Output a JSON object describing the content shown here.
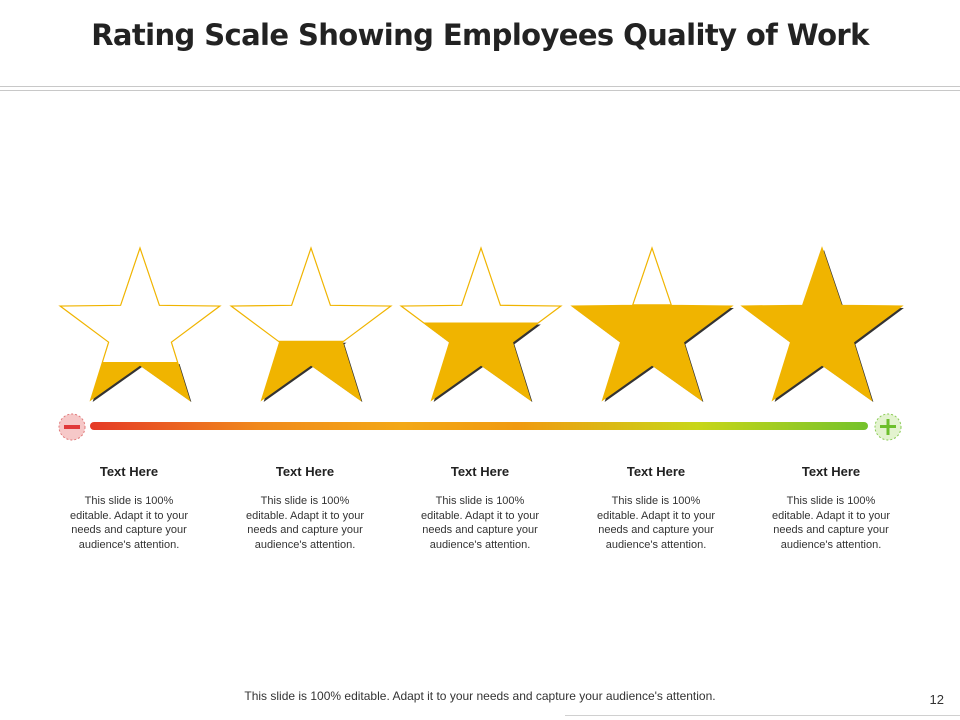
{
  "title": "Rating Scale Showing Employees Quality of Work",
  "rating_items": [
    {
      "heading": "Text Here",
      "body": "This slide is 100% editable. Adapt it to your needs and capture your audience's attention.",
      "fill": 0.25
    },
    {
      "heading": "Text Here",
      "body": "This slide is 100% editable. Adapt it to your needs and capture your audience's attention.",
      "fill": 0.39
    },
    {
      "heading": "Text Here",
      "body": "This slide is 100% editable. Adapt it to your needs and capture your audience's attention.",
      "fill": 0.51
    },
    {
      "heading": "Text Here",
      "body": "This slide is 100% editable. Adapt it to your needs and capture your audience's attention.",
      "fill": 0.63
    },
    {
      "heading": "Text Here",
      "body": "This slide is 100% editable. Adapt it to your needs and capture your audience's attention.",
      "fill": 1.0
    }
  ],
  "scale": {
    "min_symbol": "−",
    "max_symbol": "+",
    "gradient_colors": [
      "#e53a26",
      "#f08a1c",
      "#f3a816",
      "#f09a10",
      "#c8d618",
      "#74c22c"
    ]
  },
  "colors": {
    "star_fill": "#f0b400",
    "star_outline": "#f0b400",
    "star_shadow": "#333333"
  },
  "footer": "This slide is 100% editable. Adapt it to your needs and capture your audience's attention.",
  "page_number": "12"
}
